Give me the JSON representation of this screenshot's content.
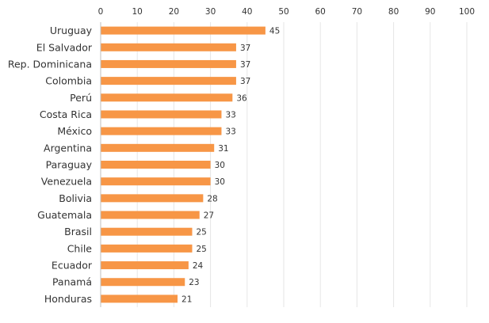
{
  "chart_data": {
    "type": "bar",
    "orientation": "horizontal",
    "title": "",
    "xlabel": "",
    "ylabel": "",
    "xlim": [
      0,
      100
    ],
    "x_ticks": [
      0,
      10,
      20,
      30,
      40,
      50,
      60,
      70,
      80,
      90,
      100
    ],
    "x_axis_position": "top",
    "grid": true,
    "legend": "none",
    "bar_color": "#f79646",
    "categories": [
      "Uruguay",
      "El Salvador",
      "Rep. Dominicana",
      "Colombia",
      "Perú",
      "Costa Rica",
      "México",
      "Argentina",
      "Paraguay",
      "Venezuela",
      "Bolivia",
      "Guatemala",
      "Brasil",
      "Chile",
      "Ecuador",
      "Panamá",
      "Honduras"
    ],
    "values": [
      45,
      37,
      37,
      37,
      36,
      33,
      33,
      31,
      30,
      30,
      28,
      27,
      25,
      25,
      24,
      23,
      21
    ]
  }
}
